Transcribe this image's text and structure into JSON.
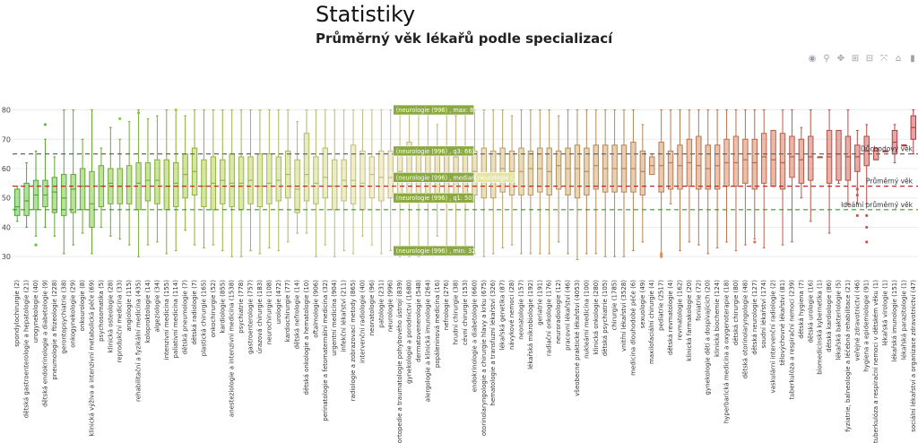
{
  "page": {
    "title": "Statistiky",
    "subtitle": "Průměrný věk lékařů podle specializací"
  },
  "modebar": {
    "icons": [
      {
        "name": "camera-icon",
        "glyph": "◉"
      },
      {
        "name": "zoom-icon",
        "glyph": "⚲"
      },
      {
        "name": "pan-icon",
        "glyph": "✥"
      },
      {
        "name": "zoom-in-icon",
        "glyph": "⊞"
      },
      {
        "name": "zoom-out-icon",
        "glyph": "⊟"
      },
      {
        "name": "autoscale-icon",
        "glyph": "⤧"
      },
      {
        "name": "reset-axes-icon",
        "glyph": "⌂"
      },
      {
        "name": "plotly-logo-icon",
        "glyph": "▮"
      }
    ]
  },
  "chart_data": {
    "type": "box",
    "title": "Průměrný věk lékařů podle specializací",
    "ylim": [
      27,
      82
    ],
    "yticks": [
      30,
      40,
      50,
      60,
      70,
      80
    ],
    "grid": true,
    "legend": "none",
    "color_scale": [
      "#5cc13b",
      "#a9cf3d",
      "#e8e0a0",
      "#d3ad6a",
      "#d9825a",
      "#d2434b"
    ],
    "reference_lines": [
      {
        "label": "Důchodový věk",
        "value": 65,
        "color": "#666666"
      },
      {
        "label": "Průměrný věk",
        "value": 54,
        "color": "#cc2222"
      },
      {
        "label": "Ideální průměrný věk",
        "value": 46,
        "color": "#2e9a2e"
      }
    ],
    "hover_labels": [
      {
        "text": "(neurologie (996) , max: 80)",
        "value": 80
      },
      {
        "text": "(neurologie (996) , q3: 66)",
        "value": 66
      },
      {
        "text": "(neurologie (996) , median: 57)",
        "value": 57
      },
      {
        "text": "(neurologie (996) , q1: 50)",
        "value": 50
      },
      {
        "text": "(neurologie (996) , min: 32)",
        "value": 32
      }
    ],
    "hover_extra": "neurologie (…",
    "hover_category_index": 40,
    "categories": [
      "spondylochirurgie (2)",
      "dětská gastroenterologie a hepatologie (21)",
      "urogynekologie (40)",
      "dětská endokrinologie a diabetologie (9)",
      "pneumologie a ftizeologie (228)",
      "gerontopsychiatrie (38)",
      "onkogynekologie (29)",
      "onkourologie (8)",
      "klinická výživa a intenzivní metabolická péče (69)",
      "psychosomatika (5)",
      "klinická osteologie (28)",
      "reprodukční medicína (33)",
      "angiologie (115)",
      "rehabilitační a fyzikální medicína (435)",
      "koloproktologie (14)",
      "algeziologie (34)",
      "intenzivní medicína (155)",
      "paliativní medicína (114)",
      "dětská pneumologie (7)",
      "dětská radiologie (7)",
      "plastická chirurgie (165)",
      "onkochirurgie (52)",
      "kardiologie (855)",
      "anesteziologie a intenzivní medicína (1538)",
      "psychiatrie (778)",
      "gastroenterologie (757)",
      "úrazová chirurgie (183)",
      "neurochirurgie (108)",
      "urologie (472)",
      "kardiochirurgie (77)",
      "dětská nefrologie (14)",
      "dětská onkologie a hematologie (10)",
      "oftalmologie (906)",
      "perinatologie a fetomaternální medicína (32)",
      "urgentní medicína (904)",
      "infekční lékařství (211)",
      "radiologie a zobrazovací metody (865)",
      "intervenční radiologie (40)",
      "neonatologie (96)",
      "patologie (231)",
      "neurologie (996)",
      "ortopedie a traumatologie pohybového ústrojí (839)",
      "gynekologie a porodnictví (1680)",
      "dermatovenerologie (548)",
      "alergologie a klinická imunologie (264)",
      "popáleninová medicína (16)",
      "nefrologie (276)",
      "hrudní chirurgie (38)",
      "cévní chirurgie (153)",
      "endokrinologie a diabetologie (660)",
      "otorinolaryngologie a chirurgie hlavy a krku (675)",
      "hematologie a transfuzní lékařství (326)",
      "lékařská genetika (87)",
      "návykové nemoci (28)",
      "neonatologie (157)",
      "lékařská mikrobiologie (192)",
      "geriatrie (191)",
      "radiační onkologie (176)",
      "neuroradiologie (12)",
      "pracovní lékařství (46)",
      "všeobecné praktické lékařství (4053)",
      "nukleární medicína (100)",
      "klinická onkologie (280)",
      "dětská psychiatrie (105)",
      "chirurgie (1785)",
      "vnitřní lékařství (3528)",
      "medicína dlouhodobé péče (6)",
      "sexuologie (49)",
      "maxilofaciální chirurgie (4)",
      "pediatrie (2517)",
      "dětská revmatologie (4)",
      "revmatologie (162)",
      "klinická farmakologie (20)",
      "foniatrie (72)",
      "gynekologie dětí a dospívajících (20)",
      "klinická biochemie (124)",
      "hyperbarická medicína a oxygenoterapie (18)",
      "dětská chirurgie (80)",
      "dětská otorinolaryngologie (48)",
      "dětská neurologie (127)",
      "soudní lékařství (174)",
      "vaskulární intervenční radiologie (2)",
      "tělovýchovné lékařství (81)",
      "tuberkulóza a respirační nemoci (239)",
      "dětská hygiena (7)",
      "dětská urologie (16)",
      "biomedicínská kybernetika (1)",
      "dětská kardiologie (86)",
      "lékařská bakteriologie (5)",
      "fyziatrie, balneologie a léčebná rehabilitace (21)",
      "veřejné zdravotnictví (46)",
      "hygiena a epidemiologie (91)",
      "tuberkulóza a respirační nemoci v dětském věku (1)",
      "lékařská virologie (1)",
      "lékařská imunologie (151)",
      "lékařská parazitologie (1)",
      "sociální lékařství a organizace zdravotnictví (47)"
    ],
    "boxes": [
      {
        "min": 42,
        "q1": 44,
        "median": 47,
        "q3": 53,
        "max": 54
      },
      {
        "min": 40,
        "q1": 44,
        "median": 49,
        "q3": 55,
        "max": 62
      },
      {
        "min": 37,
        "q1": 46,
        "median": 51,
        "q3": 56,
        "max": 66,
        "outliers": [
          34
        ]
      },
      {
        "min": 40,
        "q1": 47,
        "median": 51,
        "q3": 56,
        "max": 70,
        "outliers": [
          75
        ]
      },
      {
        "min": 37,
        "q1": 45,
        "median": 52,
        "q3": 57,
        "max": 64
      },
      {
        "min": 31,
        "q1": 44,
        "median": 50,
        "q3": 58,
        "max": 80
      },
      {
        "min": 34,
        "q1": 45,
        "median": 53,
        "q3": 58,
        "max": 80
      },
      {
        "min": 38,
        "q1": 46,
        "median": 54,
        "q3": 60,
        "max": 70
      },
      {
        "min": 31,
        "q1": 40,
        "median": 48,
        "q3": 59,
        "max": 80
      },
      {
        "min": 40,
        "q1": 47,
        "median": 54,
        "q3": 61,
        "max": 67
      },
      {
        "min": 37,
        "q1": 48,
        "median": 55,
        "q3": 60,
        "max": 74
      },
      {
        "min": 36,
        "q1": 48,
        "median": 54,
        "q3": 60,
        "max": 70,
        "outliers": [
          77
        ]
      },
      {
        "min": 34,
        "q1": 48,
        "median": 54,
        "q3": 61,
        "max": 76
      },
      {
        "min": 30,
        "q1": 46,
        "median": 55,
        "q3": 62,
        "max": 80,
        "outliers": [
          79
        ]
      },
      {
        "min": 34,
        "q1": 49,
        "median": 56,
        "q3": 62,
        "max": 77
      },
      {
        "min": 35,
        "q1": 48,
        "median": 56,
        "q3": 63,
        "max": 78
      },
      {
        "min": 31,
        "q1": 46,
        "median": 54,
        "q3": 63,
        "max": 80
      },
      {
        "min": 32,
        "q1": 47,
        "median": 55,
        "q3": 62,
        "max": 80,
        "outliers": [
          80
        ]
      },
      {
        "min": 39,
        "q1": 50,
        "median": 58,
        "q3": 65,
        "max": 78
      },
      {
        "min": 34,
        "q1": 51,
        "median": 59,
        "q3": 67,
        "max": 80
      },
      {
        "min": 33,
        "q1": 47,
        "median": 54,
        "q3": 63,
        "max": 80
      },
      {
        "min": 34,
        "q1": 46,
        "median": 55,
        "q3": 64,
        "max": 80
      },
      {
        "min": 32,
        "q1": 48,
        "median": 56,
        "q3": 63,
        "max": 80
      },
      {
        "min": 30,
        "q1": 47,
        "median": 55,
        "q3": 65,
        "max": 80
      },
      {
        "min": 30,
        "q1": 46,
        "median": 55,
        "q3": 64,
        "max": 80
      },
      {
        "min": 32,
        "q1": 48,
        "median": 56,
        "q3": 64,
        "max": 80
      },
      {
        "min": 31,
        "q1": 47,
        "median": 54,
        "q3": 65,
        "max": 80
      },
      {
        "min": 33,
        "q1": 48,
        "median": 55,
        "q3": 65,
        "max": 80
      },
      {
        "min": 32,
        "q1": 49,
        "median": 56,
        "q3": 64,
        "max": 80
      },
      {
        "min": 35,
        "q1": 50,
        "median": 58,
        "q3": 66,
        "max": 80
      },
      {
        "min": 38,
        "q1": 45,
        "median": 53,
        "q3": 63,
        "max": 76
      },
      {
        "min": 38,
        "q1": 49,
        "median": 58,
        "q3": 72,
        "max": 80
      },
      {
        "min": 30,
        "q1": 48,
        "median": 55,
        "q3": 64,
        "max": 80
      },
      {
        "min": 34,
        "q1": 50,
        "median": 57,
        "q3": 67,
        "max": 80
      },
      {
        "min": 30,
        "q1": 46,
        "median": 54,
        "q3": 63,
        "max": 80
      },
      {
        "min": 32,
        "q1": 49,
        "median": 56,
        "q3": 63,
        "max": 80
      },
      {
        "min": 31,
        "q1": 48,
        "median": 56,
        "q3": 68,
        "max": 80
      },
      {
        "min": 37,
        "q1": 46,
        "median": 55,
        "q3": 66,
        "max": 80
      },
      {
        "min": 34,
        "q1": 50,
        "median": 58,
        "q3": 64,
        "max": 80
      },
      {
        "min": 31,
        "q1": 49,
        "median": 57,
        "q3": 66,
        "max": 80
      },
      {
        "min": 32,
        "q1": 50,
        "median": 57,
        "q3": 66,
        "max": 80
      },
      {
        "min": 30,
        "q1": 51,
        "median": 59,
        "q3": 66,
        "max": 80
      },
      {
        "min": 30,
        "q1": 50,
        "median": 58,
        "q3": 69,
        "max": 80
      },
      {
        "min": 30,
        "q1": 50,
        "median": 57,
        "q3": 66,
        "max": 80
      },
      {
        "min": 33,
        "q1": 51,
        "median": 58,
        "q3": 66,
        "max": 80
      },
      {
        "min": 37,
        "q1": 49,
        "median": 57,
        "q3": 65,
        "max": 75
      },
      {
        "min": 33,
        "q1": 50,
        "median": 58,
        "q3": 66,
        "max": 80
      },
      {
        "min": 32,
        "q1": 49,
        "median": 56,
        "q3": 64,
        "max": 78
      },
      {
        "min": 31,
        "q1": 50,
        "median": 57,
        "q3": 66,
        "max": 80
      },
      {
        "min": 31,
        "q1": 51,
        "median": 59,
        "q3": 66,
        "max": 80
      },
      {
        "min": 30,
        "q1": 50,
        "median": 58,
        "q3": 67,
        "max": 80
      },
      {
        "min": 31,
        "q1": 50,
        "median": 58,
        "q3": 66,
        "max": 80
      },
      {
        "min": 33,
        "q1": 52,
        "median": 60,
        "q3": 67,
        "max": 80
      },
      {
        "min": 34,
        "q1": 51,
        "median": 59,
        "q3": 66,
        "max": 78
      },
      {
        "min": 31,
        "q1": 51,
        "median": 59,
        "q3": 67,
        "max": 80
      },
      {
        "min": 31,
        "q1": 51,
        "median": 60,
        "q3": 66,
        "max": 80
      },
      {
        "min": 31,
        "q1": 52,
        "median": 60,
        "q3": 67,
        "max": 80
      },
      {
        "min": 31,
        "q1": 51,
        "median": 59,
        "q3": 67,
        "max": 80
      },
      {
        "min": 35,
        "q1": 53,
        "median": 61,
        "q3": 66,
        "max": 78
      },
      {
        "min": 31,
        "q1": 51,
        "median": 60,
        "q3": 67,
        "max": 80
      },
      {
        "min": 29,
        "q1": 50,
        "median": 60,
        "q3": 68,
        "max": 80
      },
      {
        "min": 31,
        "q1": 51,
        "median": 59,
        "q3": 67,
        "max": 80
      },
      {
        "min": 31,
        "q1": 53,
        "median": 61,
        "q3": 68,
        "max": 80
      },
      {
        "min": 30,
        "q1": 52,
        "median": 60,
        "q3": 68,
        "max": 80
      },
      {
        "min": 30,
        "q1": 52,
        "median": 60,
        "q3": 68,
        "max": 80
      },
      {
        "min": 30,
        "q1": 52,
        "median": 60,
        "q3": 68,
        "max": 80
      },
      {
        "min": 32,
        "q1": 52,
        "median": 60,
        "q3": 69,
        "max": 80
      },
      {
        "min": 35,
        "q1": 51,
        "median": 59,
        "q3": 66,
        "max": 75
      },
      {
        "min": 58,
        "q1": 58,
        "median": 61,
        "q3": 64,
        "max": 65
      },
      {
        "min": 31,
        "q1": 52,
        "median": 61,
        "q3": 69,
        "max": 80,
        "outliers": [
          30,
          30.5,
          31
        ]
      },
      {
        "min": 48,
        "q1": 53,
        "median": 62,
        "q3": 66,
        "max": 80
      },
      {
        "min": 32,
        "q1": 53,
        "median": 61,
        "q3": 68,
        "max": 80
      },
      {
        "min": 35,
        "q1": 54,
        "median": 62,
        "q3": 70,
        "max": 80
      },
      {
        "min": 34,
        "q1": 53,
        "median": 61,
        "q3": 71,
        "max": 80
      },
      {
        "min": 31,
        "q1": 53,
        "median": 60,
        "q3": 68,
        "max": 80
      },
      {
        "min": 33,
        "q1": 53,
        "median": 61,
        "q3": 68,
        "max": 80
      },
      {
        "min": 35,
        "q1": 54,
        "median": 62,
        "q3": 70,
        "max": 80
      },
      {
        "min": 32,
        "q1": 54,
        "median": 62,
        "q3": 71,
        "max": 80
      },
      {
        "min": 34,
        "q1": 55,
        "median": 63,
        "q3": 70,
        "max": 80
      },
      {
        "min": 36,
        "q1": 53,
        "median": 62,
        "q3": 70,
        "max": 80,
        "outliers": [
          35
        ]
      },
      {
        "min": 33,
        "q1": 55,
        "median": 64,
        "q3": 72,
        "max": 80
      },
      {
        "min": 54,
        "q1": 54,
        "median": 63,
        "q3": 73,
        "max": 73
      },
      {
        "min": 34,
        "q1": 53,
        "median": 62,
        "q3": 72,
        "max": 80
      },
      {
        "min": 35,
        "q1": 57,
        "median": 64,
        "q3": 71,
        "max": 80
      },
      {
        "min": 50,
        "q1": 55,
        "median": 63,
        "q3": 70,
        "max": 74
      },
      {
        "min": 42,
        "q1": 56,
        "median": 64,
        "q3": 71,
        "max": 80
      },
      {
        "min": 64,
        "q1": 64,
        "median": 64,
        "q3": 64,
        "max": 64
      },
      {
        "min": 38,
        "q1": 55,
        "median": 64,
        "q3": 73,
        "max": 80
      },
      {
        "min": 55,
        "q1": 56,
        "median": 65,
        "q3": 73,
        "max": 73
      },
      {
        "min": 48,
        "q1": 56,
        "median": 64,
        "q3": 71,
        "max": 80
      },
      {
        "min": 48,
        "q1": 59,
        "median": 64,
        "q3": 68,
        "max": 73,
        "outliers": [
          44,
          51,
          53
        ]
      },
      {
        "min": 48,
        "q1": 61,
        "median": 66,
        "q3": 71,
        "max": 75,
        "outliers": [
          35,
          40,
          44
        ]
      },
      {
        "min": 63,
        "q1": 63,
        "median": 66,
        "q3": 67,
        "max": 67
      },
      {
        "min": 66,
        "q1": 66,
        "median": 66,
        "q3": 66,
        "max": 66
      },
      {
        "min": 62,
        "q1": 65,
        "median": 69,
        "q3": 73,
        "max": 75
      },
      {
        "min": 68,
        "q1": 68,
        "median": 68,
        "q3": 68,
        "max": 68
      },
      {
        "min": 65,
        "q1": 70,
        "median": 74,
        "q3": 78,
        "max": 80
      }
    ]
  }
}
